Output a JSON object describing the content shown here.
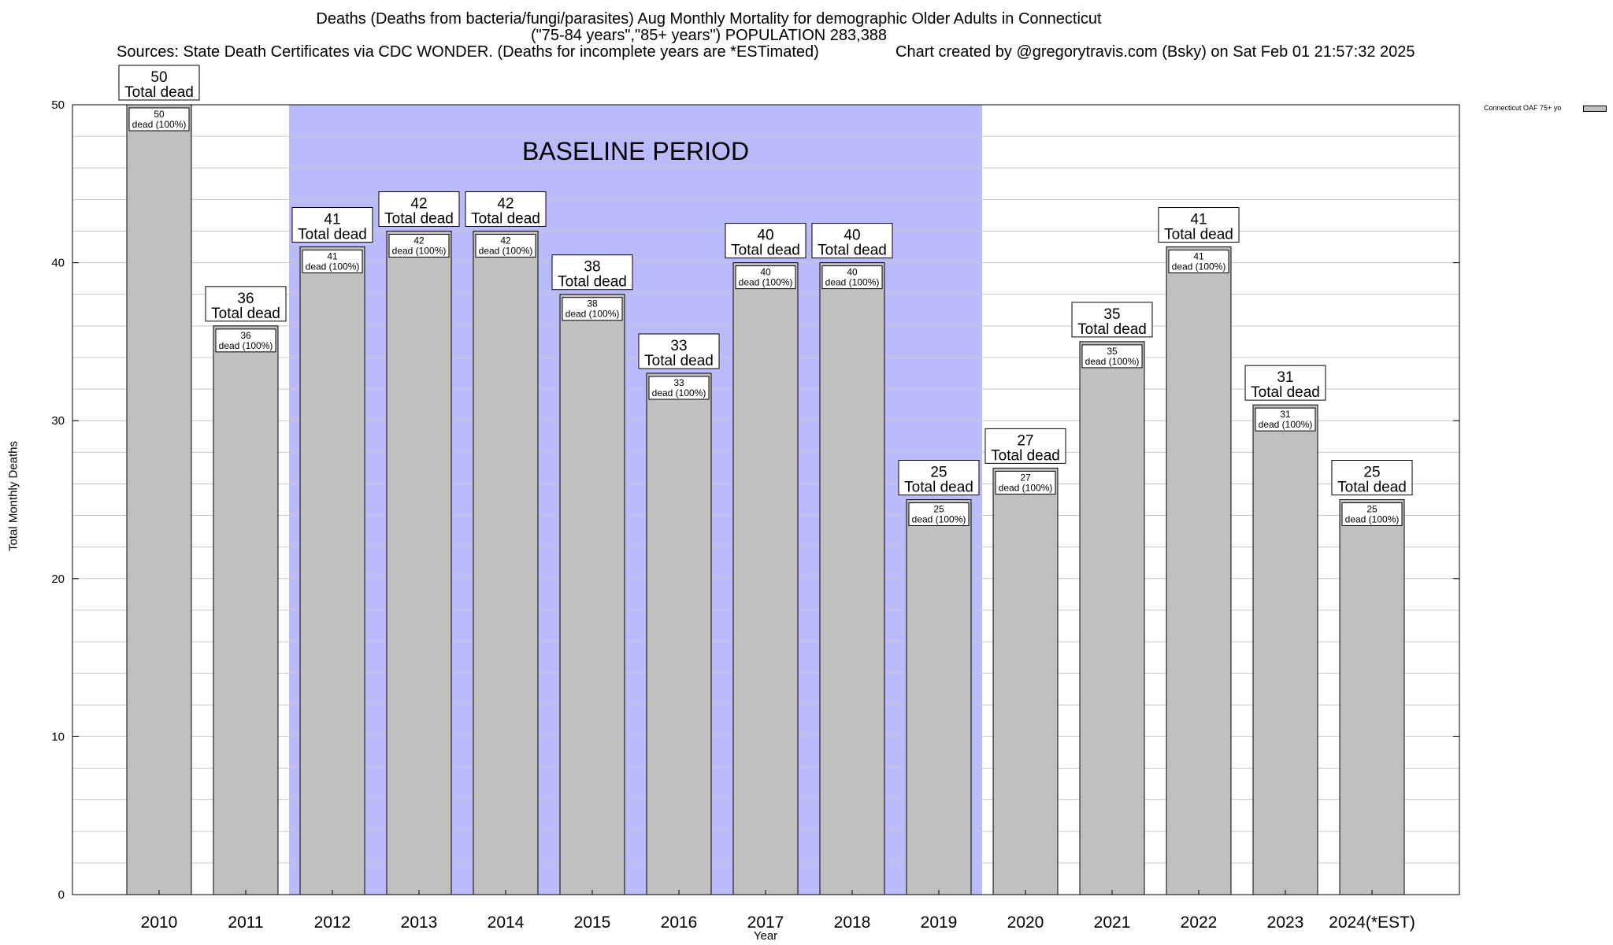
{
  "header": {
    "title_line1": "Deaths (Deaths from bacteria/fungi/parasites) Aug Monthly Mortality for demographic Older Adults in Connecticut",
    "title_line2": "(\"75-84 years\",\"85+ years\") POPULATION 283,388",
    "sources": "Sources: State Death Certificates via CDC WONDER. (Deaths for incomplete years are *ESTimated)",
    "credit": "Chart created by @gregorytravis.com (Bsky) on Sat Feb 01 21:57:32 2025"
  },
  "legend": {
    "label": "Connecticut OAF 75+ yo"
  },
  "chart_data": {
    "type": "bar",
    "ylabel": "Total Monthly Deaths",
    "xlabel": "Year",
    "ylim": [
      0,
      50
    ],
    "yticks": [
      0,
      10,
      20,
      30,
      40,
      50
    ],
    "minor_y_step": 2,
    "grid": true,
    "legend_position": "top-right",
    "categories": [
      "2010",
      "2011",
      "2012",
      "2013",
      "2014",
      "2015",
      "2016",
      "2017",
      "2018",
      "2019",
      "2020",
      "2021",
      "2022",
      "2023",
      "2024(*EST)"
    ],
    "series": [
      {
        "name": "Connecticut OAF 75+ yo",
        "values": [
          50,
          36,
          41,
          42,
          42,
          38,
          33,
          40,
          40,
          25,
          27,
          35,
          41,
          31,
          25
        ]
      }
    ],
    "total_label_suffix": "Total dead",
    "inner_label_suffix": "dead (100%)",
    "baseline": {
      "label": "BASELINE PERIOD",
      "from": "2012",
      "to": "2019"
    },
    "colors": {
      "bar": "#c0c0c0",
      "baseline": "#bbbbfb",
      "grid": "#c8c8c8"
    }
  }
}
